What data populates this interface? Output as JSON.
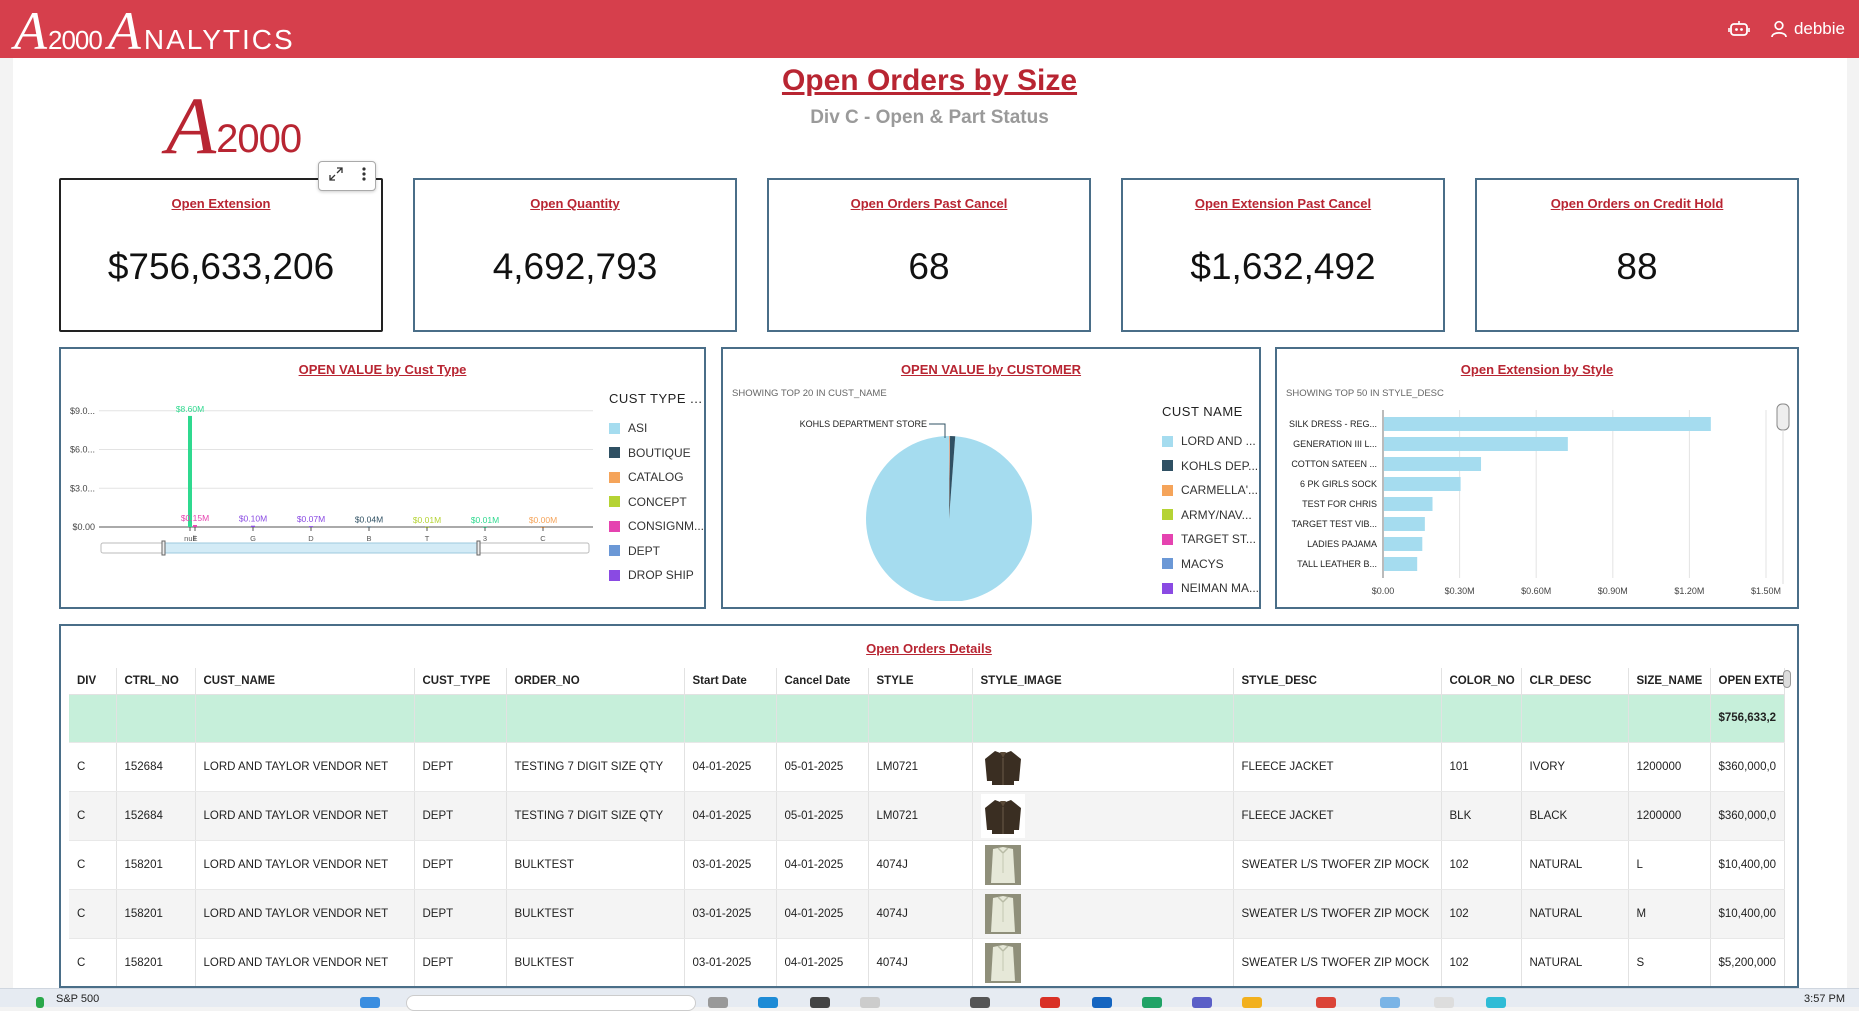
{
  "app": {
    "brand_a": "A",
    "brand_num": "2000",
    "brand_big_a": "A",
    "brand_rest": "NALYTICS",
    "user": "debbie"
  },
  "logo": {
    "a": "A",
    "num": "2000"
  },
  "report": {
    "title": "Open Orders by Size",
    "subtitle": "Div C - Open & Part Status"
  },
  "kpis": [
    {
      "title": "Open Extension",
      "value": "$756,633,206"
    },
    {
      "title": "Open Quantity",
      "value": "4,692,793"
    },
    {
      "title": "Open Orders Past Cancel",
      "value": "68"
    },
    {
      "title": "Open Extension Past Cancel",
      "value": "$1,632,492"
    },
    {
      "title": "Open Orders on Credit Hold",
      "value": "88"
    }
  ],
  "colors": {
    "topbar": "#d63f4c",
    "accent": "#b82532",
    "asi": "#a5dcef",
    "boutique": "#2f5063",
    "catalog": "#f5a45a",
    "concept": "#b5d334",
    "consignment": "#e543b0",
    "dept": "#6b98d6",
    "drop_ship": "#8a4ae3",
    "bar_green": "#2fd98f"
  },
  "chart_data": [
    {
      "type": "bar",
      "title": "OPEN VALUE by Cust Type",
      "categories": [
        "null",
        "E",
        "G",
        "D",
        "B",
        "T",
        "3",
        "C"
      ],
      "values": [
        8.6,
        0.15,
        0.1,
        0.07,
        0.04,
        0.01,
        0.01,
        0.0
      ],
      "data_labels": [
        "$8.60M",
        "$0.15M",
        "$0.10M",
        "$0.07M",
        "$0.04M",
        "$0.01M",
        "$0.01M",
        "$0.00M"
      ],
      "label_colors": [
        "#2fd98f",
        "#e543b0",
        "#8a4ae3",
        "#8a4ae3",
        "#2f5063",
        "#b5d334",
        "#2fd98f",
        "#f5a45a"
      ],
      "ytick_labels": [
        "$0.00",
        "$3.0...",
        "$6.0...",
        "$9.0..."
      ],
      "yticks": [
        0,
        3,
        6,
        9
      ],
      "ylim": [
        0,
        9.6
      ],
      "grid": true,
      "legend_title": "CUST TYPE ...",
      "legend": [
        "ASI",
        "BOUTIQUE",
        "CATALOG",
        "CONCEPT",
        "CONSIGNM...",
        "DEPT",
        "DROP SHIP"
      ],
      "legend_placement": "right"
    },
    {
      "type": "pie",
      "title": "OPEN VALUE by CUSTOMER",
      "note": "SHOWING TOP 20 IN CUST_NAME",
      "callout": "KOHLS DEPARTMENT STORE",
      "slices": [
        {
          "name": "LORD AND ...",
          "value": 98.8
        },
        {
          "name": "KOHLS DEP...",
          "value": 1.0
        },
        {
          "name": "CARMELLA'...",
          "value": 0.1
        },
        {
          "name": "ARMY/NAV...",
          "value": 0.04
        },
        {
          "name": "TARGET ST...",
          "value": 0.03
        },
        {
          "name": "MACYS",
          "value": 0.02
        },
        {
          "name": "NEIMAN MA...",
          "value": 0.01
        }
      ],
      "legend_title": "CUST NAME",
      "legend_placement": "right"
    },
    {
      "type": "bar",
      "orientation": "horizontal",
      "title": "Open Extension by Style",
      "note": "SHOWING TOP 50 IN STYLE_DESC",
      "categories": [
        "SILK DRESS - REG...",
        "GENERATION III L...",
        "COTTON SATEEN ...",
        "6 PK GIRLS SOCK",
        "TEST FOR CHRIS",
        "TARGET TEST  VIB...",
        "LADIES PAJAMA",
        "TALL LEATHER B..."
      ],
      "values": [
        1.28,
        0.72,
        0.38,
        0.3,
        0.19,
        0.16,
        0.15,
        0.13
      ],
      "xtick_labels": [
        "$0.00",
        "$0.30M",
        "$0.60M",
        "$0.90M",
        "$1.20M",
        "$1.50M"
      ],
      "xticks": [
        0,
        0.3,
        0.6,
        0.9,
        1.2,
        1.5
      ],
      "xlim": [
        0,
        1.5
      ],
      "grid": true
    }
  ],
  "details": {
    "title": "Open Orders Details",
    "columns": [
      "DIV",
      "CTRL_NO",
      "CUST_NAME",
      "CUST_TYPE",
      "ORDER_NO",
      "Start Date",
      "Cancel Date",
      "STYLE",
      "STYLE_IMAGE",
      "STYLE_DESC",
      "COLOR_NO",
      "CLR_DESC",
      "SIZE_NAME",
      "OPEN EXTE"
    ],
    "total": "$756,633,2",
    "rows": [
      [
        "C",
        "152684",
        "LORD AND TAYLOR VENDOR NET",
        "DEPT",
        "TESTING 7 DIGIT SIZE QTY",
        "04-01-2025",
        "05-01-2025",
        "LM0721",
        "jacket",
        "FLEECE JACKET",
        "101",
        "IVORY",
        "1200000",
        "$360,000,0"
      ],
      [
        "C",
        "152684",
        "LORD AND TAYLOR VENDOR NET",
        "DEPT",
        "TESTING 7 DIGIT SIZE QTY",
        "04-01-2025",
        "05-01-2025",
        "LM0721",
        "jacket",
        "FLEECE JACKET",
        "BLK",
        "BLACK",
        "1200000",
        "$360,000,0"
      ],
      [
        "C",
        "158201",
        "LORD AND TAYLOR VENDOR NET",
        "DEPT",
        "BULKTEST",
        "03-01-2025",
        "04-01-2025",
        "4074J",
        "sweater",
        "SWEATER L/S TWOFER ZIP MOCK",
        "102",
        "NATURAL",
        "L",
        "$10,400,00"
      ],
      [
        "C",
        "158201",
        "LORD AND TAYLOR VENDOR NET",
        "DEPT",
        "BULKTEST",
        "03-01-2025",
        "04-01-2025",
        "4074J",
        "sweater",
        "SWEATER L/S TWOFER ZIP MOCK",
        "102",
        "NATURAL",
        "M",
        "$10,400,00"
      ],
      [
        "C",
        "158201",
        "LORD AND TAYLOR VENDOR NET",
        "DEPT",
        "BULKTEST",
        "03-01-2025",
        "04-01-2025",
        "4074J",
        "sweater",
        "SWEATER L/S TWOFER ZIP MOCK",
        "102",
        "NATURAL",
        "S",
        "$5,200,000"
      ]
    ]
  },
  "taskbar": {
    "stock": "S&P 500",
    "time": "3:57 PM"
  }
}
